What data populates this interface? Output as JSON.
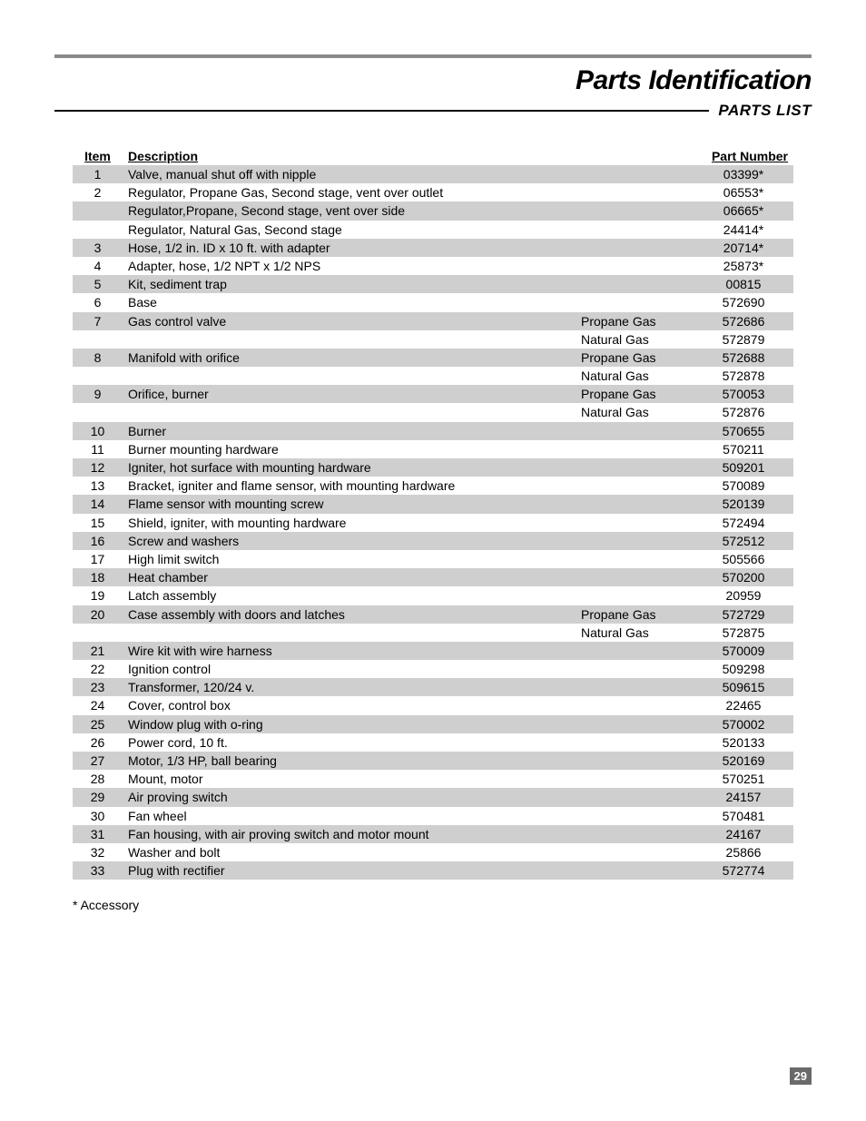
{
  "page_title": "Parts Identification",
  "section_title": "PARTS LIST",
  "headers": {
    "item": "Item",
    "description": "Description",
    "part_number": "Part Number"
  },
  "footnote": "* Accessory",
  "page_number": "29",
  "colors": {
    "top_rule": "#8a8a8a",
    "shade": "#cfcfcf",
    "pagenum_bg": "#6a6a6a",
    "pagenum_fg": "#ffffff",
    "text": "#000000",
    "background": "#ffffff"
  },
  "rows": [
    {
      "item": "1",
      "desc": "Valve, manual shut off with nipple",
      "variant": "",
      "pn": "03399*",
      "shade": true
    },
    {
      "item": "2",
      "desc": "Regulator, Propane Gas, Second stage, vent over outlet",
      "variant": "",
      "pn": "06553*",
      "shade": false
    },
    {
      "item": "",
      "desc": "Regulator,Propane, Second stage, vent over side",
      "variant": "",
      "pn": "06665*",
      "shade": true
    },
    {
      "item": "",
      "desc": "Regulator, Natural Gas, Second stage",
      "variant": "",
      "pn": "24414*",
      "shade": false
    },
    {
      "item": "3",
      "desc": "Hose, 1/2 in. ID x 10 ft. with adapter",
      "variant": "",
      "pn": "20714*",
      "shade": true
    },
    {
      "item": "4",
      "desc": "Adapter, hose, 1/2 NPT x 1/2 NPS",
      "variant": "",
      "pn": "25873*",
      "shade": false
    },
    {
      "item": "5",
      "desc": "Kit, sediment trap",
      "variant": "",
      "pn": "00815",
      "shade": true
    },
    {
      "item": "6",
      "desc": "Base",
      "variant": "",
      "pn": "572690",
      "shade": false
    },
    {
      "item": "7",
      "desc": "Gas control valve",
      "variant": "Propane Gas",
      "pn": "572686",
      "shade": true
    },
    {
      "item": "",
      "desc": "",
      "variant": "Natural Gas",
      "pn": "572879",
      "shade": false
    },
    {
      "item": "8",
      "desc": "Manifold with orifice",
      "variant": "Propane Gas",
      "pn": "572688",
      "shade": true
    },
    {
      "item": "",
      "desc": "",
      "variant": "Natural Gas",
      "pn": "572878",
      "shade": false
    },
    {
      "item": "9",
      "desc": "Orifice, burner",
      "variant": "Propane Gas",
      "pn": "570053",
      "shade": true
    },
    {
      "item": "",
      "desc": "",
      "variant": "Natural Gas",
      "pn": "572876",
      "shade": false
    },
    {
      "item": "10",
      "desc": "Burner",
      "variant": "",
      "pn": "570655",
      "shade": true
    },
    {
      "item": "11",
      "desc": "Burner mounting hardware",
      "variant": "",
      "pn": "570211",
      "shade": false
    },
    {
      "item": "12",
      "desc": "Igniter, hot surface with mounting hardware",
      "variant": "",
      "pn": "509201",
      "shade": true
    },
    {
      "item": "13",
      "desc": "Bracket, igniter and flame sensor, with mounting hardware",
      "variant": "",
      "pn": "570089",
      "shade": false
    },
    {
      "item": "14",
      "desc": "Flame sensor with mounting screw",
      "variant": "",
      "pn": "520139",
      "shade": true
    },
    {
      "item": "15",
      "desc": "Shield, igniter, with mounting hardware",
      "variant": "",
      "pn": "572494",
      "shade": false
    },
    {
      "item": "16",
      "desc": "Screw and washers",
      "variant": "",
      "pn": "572512",
      "shade": true
    },
    {
      "item": "17",
      "desc": "High limit switch",
      "variant": "",
      "pn": "505566",
      "shade": false
    },
    {
      "item": "18",
      "desc": "Heat chamber",
      "variant": "",
      "pn": "570200",
      "shade": true
    },
    {
      "item": "19",
      "desc": "Latch assembly",
      "variant": "",
      "pn": "20959",
      "shade": false
    },
    {
      "item": "20",
      "desc": "Case assembly with doors and latches",
      "variant": "Propane Gas",
      "pn": "572729",
      "shade": true
    },
    {
      "item": "",
      "desc": "",
      "variant": "Natural Gas",
      "pn": "572875",
      "shade": false
    },
    {
      "item": "21",
      "desc": "Wire kit with wire harness",
      "variant": "",
      "pn": "570009",
      "shade": true
    },
    {
      "item": "22",
      "desc": "Ignition control",
      "variant": "",
      "pn": "509298",
      "shade": false
    },
    {
      "item": "23",
      "desc": "Transformer, 120/24 v.",
      "variant": "",
      "pn": "509615",
      "shade": true
    },
    {
      "item": "24",
      "desc": "Cover, control box",
      "variant": "",
      "pn": "22465",
      "shade": false
    },
    {
      "item": "25",
      "desc": "Window plug with o-ring",
      "variant": "",
      "pn": "570002",
      "shade": true
    },
    {
      "item": "26",
      "desc": "Power cord, 10 ft.",
      "variant": "",
      "pn": "520133",
      "shade": false
    },
    {
      "item": "27",
      "desc": "Motor, 1/3 HP, ball bearing",
      "variant": "",
      "pn": "520169",
      "shade": true
    },
    {
      "item": "28",
      "desc": "Mount, motor",
      "variant": "",
      "pn": "570251",
      "shade": false
    },
    {
      "item": "29",
      "desc": "Air proving switch",
      "variant": "",
      "pn": "24157",
      "shade": true
    },
    {
      "item": "30",
      "desc": "Fan wheel",
      "variant": "",
      "pn": "570481",
      "shade": false
    },
    {
      "item": "31",
      "desc": "Fan housing,  with air proving switch  and motor mount",
      "variant": "",
      "pn": "24167",
      "shade": true
    },
    {
      "item": "32",
      "desc": "Washer and bolt",
      "variant": "",
      "pn": "25866",
      "shade": false
    },
    {
      "item": "33",
      "desc": "Plug with rectifier",
      "variant": "",
      "pn": "572774",
      "shade": true
    }
  ]
}
